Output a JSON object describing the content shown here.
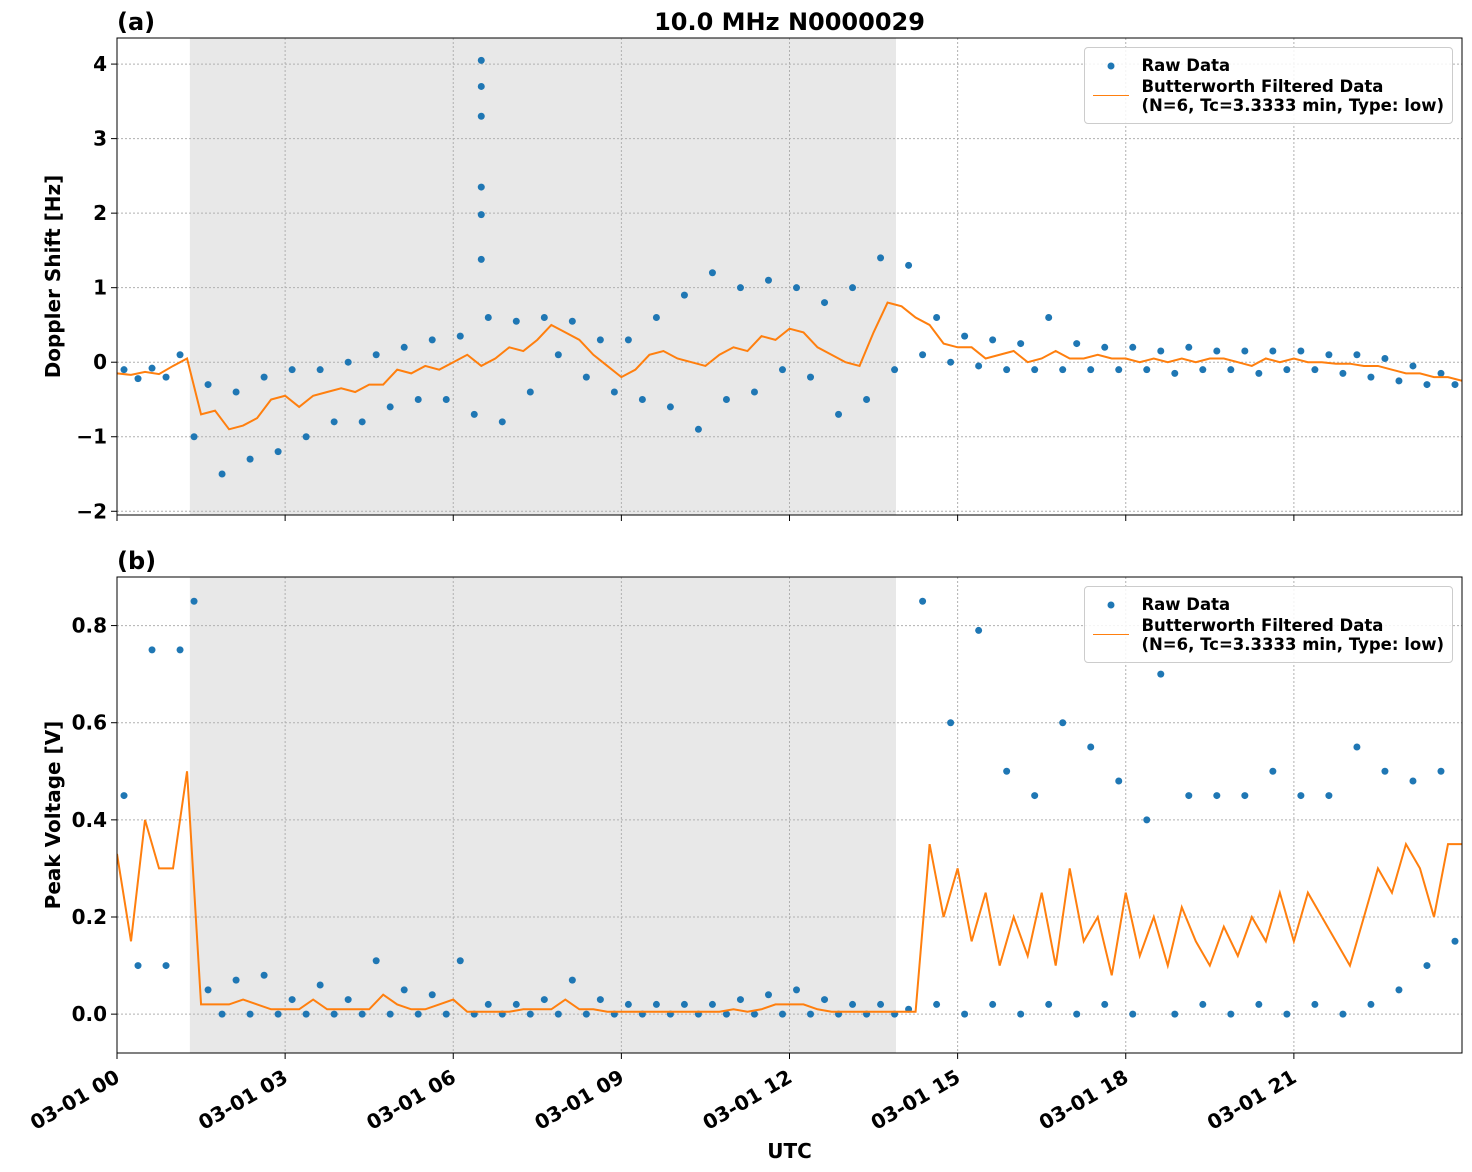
{
  "chart_data": [
    {
      "type": "line",
      "title": "10.0 MHz N0000029",
      "panel_label": "(a)",
      "ylabel": "Doppler Shift [Hz]",
      "xlim": [
        0,
        24
      ],
      "xticks": [
        0,
        3,
        6,
        9,
        12,
        15,
        18,
        21
      ],
      "ylim": [
        -2.05,
        4.35
      ],
      "yticks": [
        {
          "value": -2,
          "label": "−2"
        },
        {
          "value": -1,
          "label": "−1"
        },
        0,
        1,
        2,
        3,
        4
      ],
      "grid": true,
      "legend": "upper right",
      "shade": {
        "x": [
          1.3,
          13.9
        ],
        "color": "#e8e8e8"
      },
      "series": [
        {
          "name": "Raw Data",
          "type": "scatter",
          "color": "#1f77b4",
          "x": [
            0.125,
            0.375,
            0.625,
            0.875,
            1.125,
            1.375,
            1.625,
            1.875,
            2.125,
            2.375,
            2.625,
            2.875,
            3.125,
            3.375,
            3.625,
            3.875,
            4.125,
            4.375,
            4.625,
            4.875,
            5.125,
            5.375,
            5.625,
            5.875,
            6.125,
            6.375,
            6.625,
            6.875,
            7.125,
            7.375,
            7.625,
            7.875,
            8.125,
            8.375,
            8.625,
            8.875,
            9.125,
            9.375,
            9.625,
            9.875,
            10.125,
            10.375,
            10.625,
            10.875,
            11.125,
            11.375,
            11.625,
            11.875,
            12.125,
            12.375,
            12.625,
            12.875,
            13.125,
            13.375,
            13.625,
            13.875,
            14.125,
            14.375,
            14.625,
            14.875,
            15.125,
            15.375,
            15.625,
            15.875,
            16.125,
            16.375,
            16.625,
            16.875,
            17.125,
            17.375,
            17.625,
            17.875,
            18.125,
            18.375,
            18.625,
            18.875,
            19.125,
            19.375,
            19.625,
            19.875,
            20.125,
            20.375,
            20.625,
            20.875,
            21.125,
            21.375,
            21.625,
            21.875,
            22.125,
            22.375,
            22.625,
            22.875,
            23.125,
            23.375,
            23.625,
            23.875,
            6.5,
            6.5,
            6.5,
            6.5,
            6.5,
            6.5
          ],
          "values": [
            -0.1,
            -0.22,
            -0.08,
            -0.2,
            0.1,
            -1.0,
            -0.3,
            -1.5,
            -0.4,
            -1.3,
            -0.2,
            -1.2,
            -0.1,
            -1.0,
            -0.1,
            -0.8,
            0.0,
            -0.8,
            0.1,
            -0.6,
            0.2,
            -0.5,
            0.3,
            -0.5,
            0.35,
            -0.7,
            0.6,
            -0.8,
            0.55,
            -0.4,
            0.6,
            0.1,
            0.55,
            -0.2,
            0.3,
            -0.4,
            0.3,
            -0.5,
            0.6,
            -0.6,
            0.9,
            -0.9,
            1.2,
            -0.5,
            1.0,
            -0.4,
            1.1,
            -0.1,
            1.0,
            -0.2,
            0.8,
            -0.7,
            1.0,
            -0.5,
            1.4,
            -0.1,
            1.3,
            0.1,
            0.6,
            0.0,
            0.35,
            -0.05,
            0.3,
            -0.1,
            0.25,
            -0.1,
            0.6,
            -0.1,
            0.25,
            -0.1,
            0.2,
            -0.1,
            0.2,
            -0.1,
            0.15,
            -0.15,
            0.2,
            -0.1,
            0.15,
            -0.1,
            0.15,
            -0.15,
            0.15,
            -0.1,
            0.15,
            -0.1,
            0.1,
            -0.15,
            0.1,
            -0.2,
            0.05,
            -0.25,
            -0.05,
            -0.3,
            -0.15,
            -0.3,
            4.05,
            3.7,
            3.3,
            2.35,
            1.98,
            1.38
          ]
        },
        {
          "name": "Butterworth Filtered Data\n(N=6, Tc=3.3333 min, Type: low)",
          "type": "line",
          "color": "#ff7f0e",
          "x": [
            0,
            0.25,
            0.5,
            0.75,
            1,
            1.25,
            1.5,
            1.75,
            2,
            2.25,
            2.5,
            2.75,
            3,
            3.25,
            3.5,
            3.75,
            4,
            4.25,
            4.5,
            4.75,
            5,
            5.25,
            5.5,
            5.75,
            6,
            6.25,
            6.5,
            6.75,
            7,
            7.25,
            7.5,
            7.75,
            8,
            8.25,
            8.5,
            8.75,
            9,
            9.25,
            9.5,
            9.75,
            10,
            10.25,
            10.5,
            10.75,
            11,
            11.25,
            11.5,
            11.75,
            12,
            12.25,
            12.5,
            12.75,
            13,
            13.25,
            13.5,
            13.75,
            14,
            14.25,
            14.5,
            14.75,
            15,
            15.25,
            15.5,
            15.75,
            16,
            16.25,
            16.5,
            16.75,
            17,
            17.25,
            17.5,
            17.75,
            18,
            18.25,
            18.5,
            18.75,
            19,
            19.25,
            19.5,
            19.75,
            20,
            20.25,
            20.5,
            20.75,
            21,
            21.25,
            21.5,
            21.75,
            22,
            22.25,
            22.5,
            22.75,
            23,
            23.25,
            23.5,
            23.75,
            24
          ],
          "values": [
            -0.15,
            -0.17,
            -0.13,
            -0.16,
            -0.05,
            0.05,
            -0.7,
            -0.65,
            -0.9,
            -0.85,
            -0.75,
            -0.5,
            -0.45,
            -0.6,
            -0.45,
            -0.4,
            -0.35,
            -0.4,
            -0.3,
            -0.3,
            -0.1,
            -0.15,
            -0.05,
            -0.1,
            0.0,
            0.1,
            -0.05,
            0.05,
            0.2,
            0.15,
            0.3,
            0.5,
            0.4,
            0.3,
            0.1,
            -0.05,
            -0.2,
            -0.1,
            0.1,
            0.15,
            0.05,
            0.0,
            -0.05,
            0.1,
            0.2,
            0.15,
            0.35,
            0.3,
            0.45,
            0.4,
            0.2,
            0.1,
            0.0,
            -0.05,
            0.4,
            0.8,
            0.75,
            0.6,
            0.5,
            0.25,
            0.2,
            0.2,
            0.05,
            0.1,
            0.15,
            0.0,
            0.05,
            0.15,
            0.05,
            0.05,
            0.1,
            0.05,
            0.05,
            0.0,
            0.05,
            0.0,
            0.05,
            0.0,
            0.05,
            0.05,
            0.0,
            -0.05,
            0.05,
            0.0,
            0.05,
            0.0,
            0.0,
            -0.02,
            -0.02,
            -0.05,
            -0.05,
            -0.1,
            -0.15,
            -0.15,
            -0.2,
            -0.2,
            -0.25
          ]
        }
      ]
    },
    {
      "type": "line",
      "panel_label": "(b)",
      "ylabel": "Peak Voltage [V]",
      "xlabel": "UTC",
      "xlim": [
        0,
        24
      ],
      "xticks": [
        {
          "value": 0,
          "label": "03-01 00"
        },
        {
          "value": 3,
          "label": "03-01 03"
        },
        {
          "value": 6,
          "label": "03-01 06"
        },
        {
          "value": 9,
          "label": "03-01 09"
        },
        {
          "value": 12,
          "label": "03-01 12"
        },
        {
          "value": 15,
          "label": "03-01 15"
        },
        {
          "value": 18,
          "label": "03-01 18"
        },
        {
          "value": 21,
          "label": "03-01 21"
        }
      ],
      "ylim": [
        -0.08,
        0.9
      ],
      "yticks": [
        {
          "value": 0,
          "label": "0.0"
        },
        0.2,
        0.4,
        0.6,
        0.8
      ],
      "grid": true,
      "legend": "upper right",
      "shade": {
        "x": [
          1.3,
          13.9
        ],
        "color": "#e8e8e8"
      },
      "series": [
        {
          "name": "Raw Data",
          "type": "scatter",
          "color": "#1f77b4",
          "x": [
            0.125,
            0.375,
            0.625,
            0.875,
            1.125,
            1.375,
            1.625,
            1.875,
            2.125,
            2.375,
            2.625,
            2.875,
            3.125,
            3.375,
            3.625,
            3.875,
            4.125,
            4.375,
            4.625,
            4.875,
            5.125,
            5.375,
            5.625,
            5.875,
            6.125,
            6.375,
            6.625,
            6.875,
            7.125,
            7.375,
            7.625,
            7.875,
            8.125,
            8.375,
            8.625,
            8.875,
            9.125,
            9.375,
            9.625,
            9.875,
            10.125,
            10.375,
            10.625,
            10.875,
            11.125,
            11.375,
            11.625,
            11.875,
            12.125,
            12.375,
            12.625,
            12.875,
            13.125,
            13.375,
            13.625,
            13.875,
            14.125,
            14.375,
            14.625,
            14.875,
            15.125,
            15.375,
            15.625,
            15.875,
            16.125,
            16.375,
            16.625,
            16.875,
            17.125,
            17.375,
            17.625,
            17.875,
            18.125,
            18.375,
            18.625,
            18.875,
            19.125,
            19.375,
            19.625,
            19.875,
            20.125,
            20.375,
            20.625,
            20.875,
            21.125,
            21.375,
            21.625,
            21.875,
            22.125,
            22.375,
            22.625,
            22.875,
            23.125,
            23.375,
            23.625,
            23.875
          ],
          "values": [
            0.45,
            0.1,
            0.75,
            0.1,
            0.75,
            0.85,
            0.05,
            0.0,
            0.07,
            0.0,
            0.08,
            0.0,
            0.03,
            0.0,
            0.06,
            0.0,
            0.03,
            0.0,
            0.11,
            0.0,
            0.05,
            0.0,
            0.04,
            0.0,
            0.11,
            0.0,
            0.02,
            0.0,
            0.02,
            0.0,
            0.03,
            0.0,
            0.07,
            0.0,
            0.03,
            0.0,
            0.02,
            0.0,
            0.02,
            0.0,
            0.02,
            0.0,
            0.02,
            0.0,
            0.03,
            0.0,
            0.04,
            0.0,
            0.05,
            0.0,
            0.03,
            0.0,
            0.02,
            0.0,
            0.02,
            0.0,
            0.01,
            0.85,
            0.02,
            0.6,
            0.0,
            0.79,
            0.02,
            0.5,
            0.0,
            0.45,
            0.02,
            0.6,
            0.0,
            0.55,
            0.02,
            0.48,
            0.0,
            0.4,
            0.7,
            0.0,
            0.45,
            0.02,
            0.45,
            0.0,
            0.45,
            0.02,
            0.5,
            0.0,
            0.45,
            0.02,
            0.45,
            0.0,
            0.55,
            0.02,
            0.5,
            0.05,
            0.48,
            0.1,
            0.5,
            0.15
          ]
        },
        {
          "name": "Butterworth Filtered Data\n(N=6, Tc=3.3333 min, Type: low)",
          "type": "line",
          "color": "#ff7f0e",
          "x": [
            0,
            0.25,
            0.5,
            0.75,
            1,
            1.25,
            1.5,
            1.75,
            2,
            2.25,
            2.5,
            2.75,
            3,
            3.25,
            3.5,
            3.75,
            4,
            4.25,
            4.5,
            4.75,
            5,
            5.25,
            5.5,
            5.75,
            6,
            6.25,
            6.5,
            6.75,
            7,
            7.25,
            7.5,
            7.75,
            8,
            8.25,
            8.5,
            8.75,
            9,
            9.25,
            9.5,
            9.75,
            10,
            10.25,
            10.5,
            10.75,
            11,
            11.25,
            11.5,
            11.75,
            12,
            12.25,
            12.5,
            12.75,
            13,
            13.25,
            13.5,
            13.75,
            14,
            14.25,
            14.5,
            14.75,
            15,
            15.25,
            15.5,
            15.75,
            16,
            16.25,
            16.5,
            16.75,
            17,
            17.25,
            17.5,
            17.75,
            18,
            18.25,
            18.5,
            18.75,
            19,
            19.25,
            19.5,
            19.75,
            20,
            20.25,
            20.5,
            20.75,
            21,
            21.25,
            21.5,
            21.75,
            22,
            22.25,
            22.5,
            22.75,
            23,
            23.25,
            23.5,
            23.75,
            24
          ],
          "values": [
            0.33,
            0.15,
            0.4,
            0.3,
            0.3,
            0.5,
            0.02,
            0.02,
            0.02,
            0.03,
            0.02,
            0.01,
            0.01,
            0.01,
            0.03,
            0.01,
            0.01,
            0.01,
            0.01,
            0.04,
            0.02,
            0.01,
            0.01,
            0.02,
            0.03,
            0.005,
            0.005,
            0.005,
            0.005,
            0.01,
            0.01,
            0.01,
            0.03,
            0.01,
            0.01,
            0.005,
            0.005,
            0.005,
            0.005,
            0.005,
            0.005,
            0.005,
            0.005,
            0.005,
            0.01,
            0.005,
            0.01,
            0.02,
            0.02,
            0.02,
            0.01,
            0.005,
            0.005,
            0.005,
            0.005,
            0.005,
            0.005,
            0.005,
            0.35,
            0.2,
            0.3,
            0.15,
            0.25,
            0.1,
            0.2,
            0.12,
            0.25,
            0.1,
            0.3,
            0.15,
            0.2,
            0.08,
            0.25,
            0.12,
            0.2,
            0.1,
            0.22,
            0.15,
            0.1,
            0.18,
            0.12,
            0.2,
            0.15,
            0.25,
            0.15,
            0.25,
            0.2,
            0.15,
            0.1,
            0.2,
            0.3,
            0.25,
            0.35,
            0.3,
            0.2,
            0.35,
            0.35
          ]
        }
      ]
    }
  ]
}
